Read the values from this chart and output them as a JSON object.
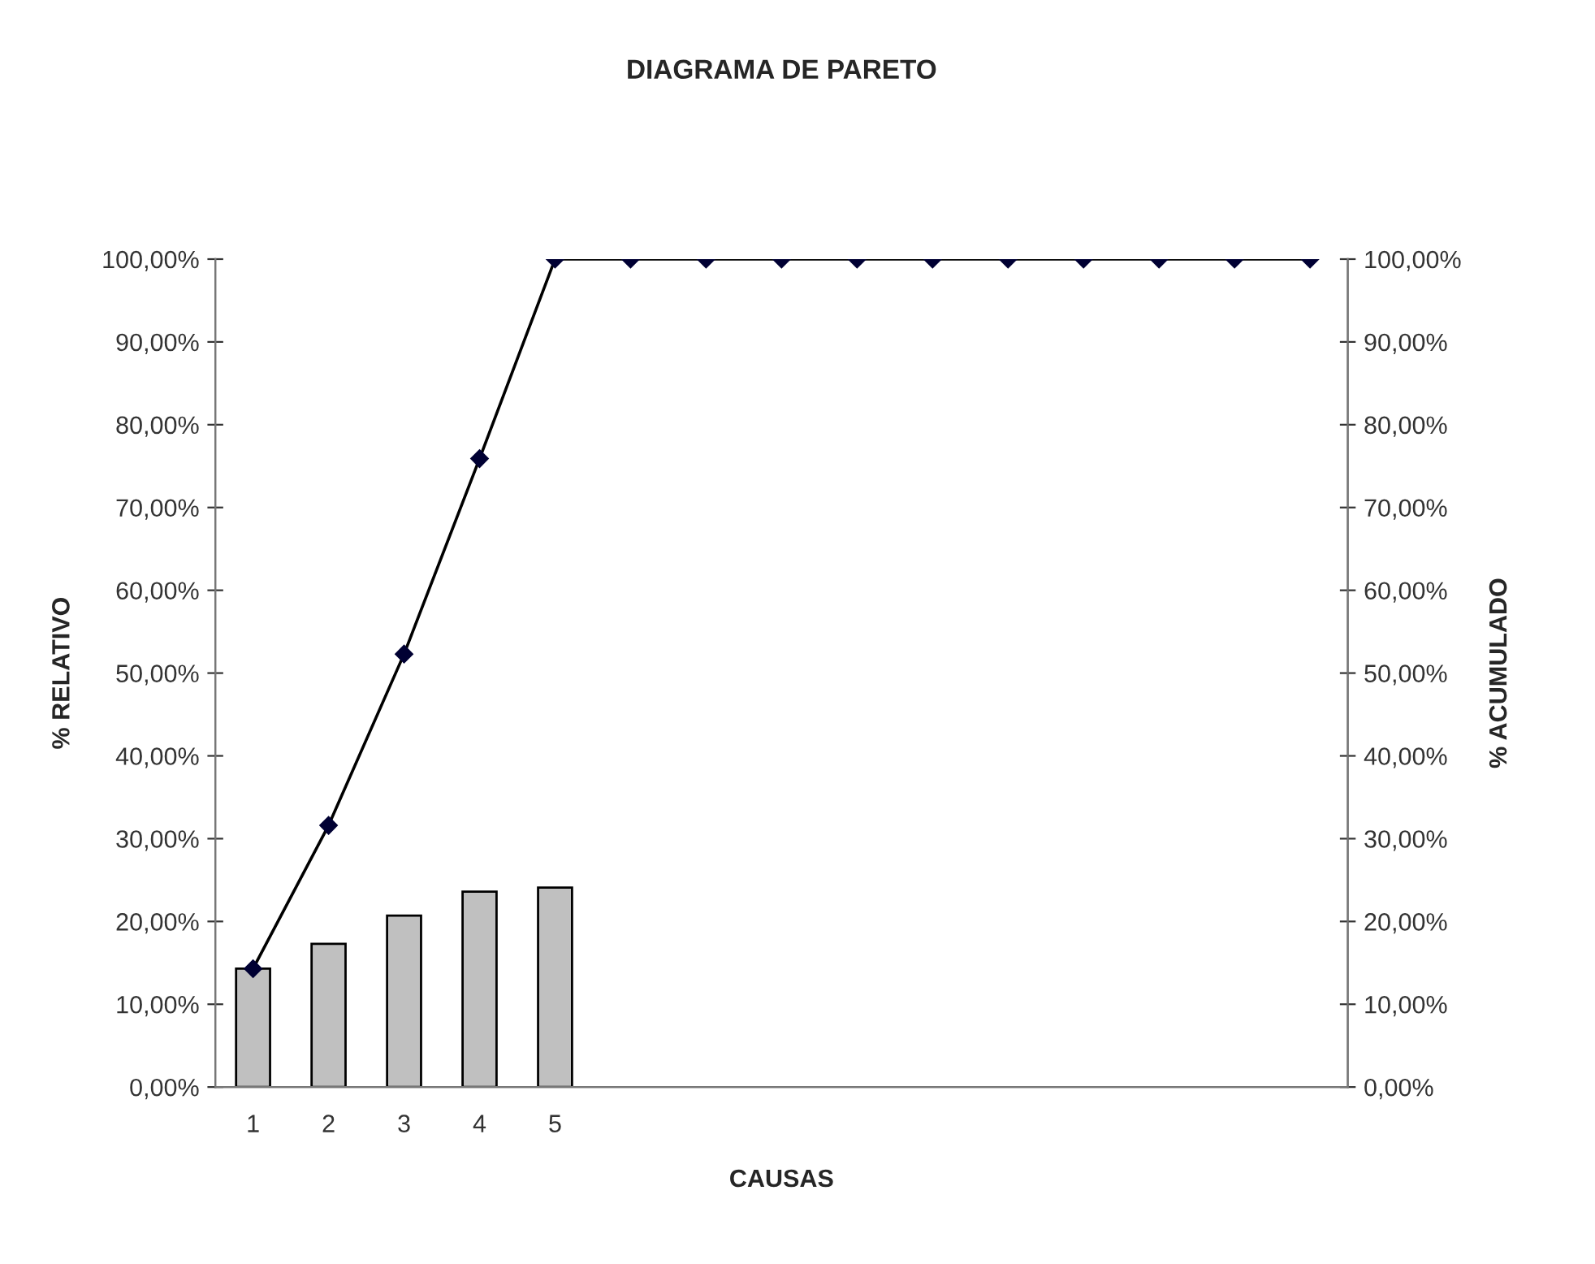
{
  "chart_data": {
    "type": "bar",
    "title": "DIAGRAMA DE PARETO",
    "xlabel": "CAUSAS",
    "ylabel": "% RELATIVO",
    "y2label": "% ACUMULADO",
    "categories": [
      "1",
      "2",
      "3",
      "4",
      "5",
      null,
      null,
      null,
      null,
      null,
      null,
      null,
      null,
      null,
      null
    ],
    "series": [
      {
        "color": "#c0c0c0",
        "values": [
          14.3,
          17.3,
          20.7,
          23.6,
          24.1,
          null,
          null,
          null,
          null,
          null,
          null,
          null,
          null,
          null,
          null
        ]
      },
      {
        "type": "line",
        "color": "#000033",
        "marker": "diamond",
        "line_style": "solid",
        "values": [
          14.3,
          31.6,
          52.3,
          75.9,
          100,
          100,
          100,
          100,
          100,
          100,
          100,
          100,
          100,
          100,
          100
        ]
      }
    ],
    "ylim": [
      0,
      100
    ],
    "yticks": [
      {
        "value": 0,
        "label": "0,00%"
      },
      {
        "value": 10,
        "label": "10,00%"
      },
      {
        "value": 20,
        "label": "20,00%"
      },
      {
        "value": 30,
        "label": "30,00%"
      },
      {
        "value": 40,
        "label": "40,00%"
      },
      {
        "value": 50,
        "label": "50,00%"
      },
      {
        "value": 60,
        "label": "60,00%"
      },
      {
        "value": 70,
        "label": "70,00%"
      },
      {
        "value": 80,
        "label": "80,00%"
      },
      {
        "value": 90,
        "label": "90,00%"
      },
      {
        "value": 100,
        "label": "100,00%"
      }
    ],
    "y2lim": [
      0,
      100
    ],
    "y2ticks": [
      {
        "value": 0,
        "label": "0,00%"
      },
      {
        "value": 10,
        "label": "10,00%"
      },
      {
        "value": 20,
        "label": "20,00%"
      },
      {
        "value": 30,
        "label": "30,00%"
      },
      {
        "value": 40,
        "label": "40,00%"
      },
      {
        "value": 50,
        "label": "50,00%"
      },
      {
        "value": 60,
        "label": "60,00%"
      },
      {
        "value": 70,
        "label": "70,00%"
      },
      {
        "value": 80,
        "label": "80,00%"
      },
      {
        "value": 90,
        "label": "90,00%"
      },
      {
        "value": 100,
        "label": "100,00%"
      }
    ],
    "grid": false
  }
}
